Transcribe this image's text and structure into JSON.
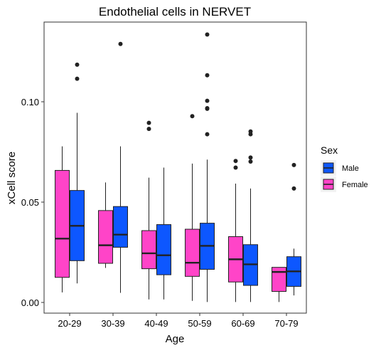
{
  "chart_data": {
    "type": "boxplot",
    "title": "Endothelial cells in NERVET",
    "xlabel": "Age",
    "ylabel": "xCell score",
    "categories": [
      "20-29",
      "30-39",
      "40-49",
      "50-59",
      "60-69",
      "70-79"
    ],
    "ylim": [
      -0.003,
      0.135
    ],
    "yticks": [
      0.0,
      0.05,
      0.1
    ],
    "ytick_labels": [
      "0.00",
      "0.05",
      "0.10"
    ],
    "grid": false,
    "legend": {
      "title": "Sex",
      "placement": "right",
      "entries": [
        "Male",
        "Female"
      ]
    },
    "series": [
      {
        "name": "Female",
        "color": "#ff44c8",
        "boxes": [
          {
            "category": "20-29",
            "whisker_low": 0.005,
            "q1": 0.0125,
            "median": 0.0318,
            "q3": 0.0658,
            "whisker_high": 0.0778,
            "outliers": []
          },
          {
            "category": "30-39",
            "whisker_low": 0.0172,
            "q1": 0.0195,
            "median": 0.0285,
            "q3": 0.0458,
            "whisker_high": 0.0598,
            "outliers": []
          },
          {
            "category": "40-49",
            "whisker_low": 0.0015,
            "q1": 0.0168,
            "median": 0.0245,
            "q3": 0.0358,
            "whisker_high": 0.0622,
            "outliers": [
              0.0865,
              0.0895
            ]
          },
          {
            "category": "50-59",
            "whisker_low": 0.0008,
            "q1": 0.013,
            "median": 0.0198,
            "q3": 0.0365,
            "whisker_high": 0.0692,
            "outliers": [
              0.0928
            ]
          },
          {
            "category": "60-69",
            "whisker_low": 0.0002,
            "q1": 0.0102,
            "median": 0.0215,
            "q3": 0.0328,
            "whisker_high": 0.0592,
            "outliers": [
              0.0672,
              0.0705
            ]
          },
          {
            "category": "70-79",
            "whisker_low": 0.0002,
            "q1": 0.0055,
            "median": 0.0152,
            "q3": 0.0175,
            "whisker_high": 0.0175,
            "outliers": []
          }
        ]
      },
      {
        "name": "Male",
        "color": "#0d57ff",
        "boxes": [
          {
            "category": "20-29",
            "whisker_low": 0.0095,
            "q1": 0.0208,
            "median": 0.0382,
            "q3": 0.0558,
            "whisker_high": 0.0945,
            "outliers": [
              0.1115,
              0.1185
            ]
          },
          {
            "category": "30-39",
            "whisker_low": 0.0048,
            "q1": 0.0275,
            "median": 0.0338,
            "q3": 0.0478,
            "whisker_high": 0.0778,
            "outliers": [
              0.1288
            ]
          },
          {
            "category": "40-49",
            "whisker_low": 0.0015,
            "q1": 0.0138,
            "median": 0.0235,
            "q3": 0.0388,
            "whisker_high": 0.0672,
            "outliers": []
          },
          {
            "category": "50-59",
            "whisker_low": 0.0002,
            "q1": 0.0165,
            "median": 0.0282,
            "q3": 0.0395,
            "whisker_high": 0.0712,
            "outliers": [
              0.0838,
              0.0965,
              0.0968,
              0.1005,
              0.1132,
              0.1335
            ]
          },
          {
            "category": "60-69",
            "whisker_low": 0.0002,
            "q1": 0.0085,
            "median": 0.019,
            "q3": 0.0288,
            "whisker_high": 0.0568,
            "outliers": [
              0.0702,
              0.0722,
              0.0838,
              0.0852
            ]
          },
          {
            "category": "70-79",
            "whisker_low": 0.0035,
            "q1": 0.008,
            "median": 0.0155,
            "q3": 0.0228,
            "whisker_high": 0.0268,
            "outliers": [
              0.0568,
              0.0685
            ]
          }
        ]
      }
    ]
  }
}
